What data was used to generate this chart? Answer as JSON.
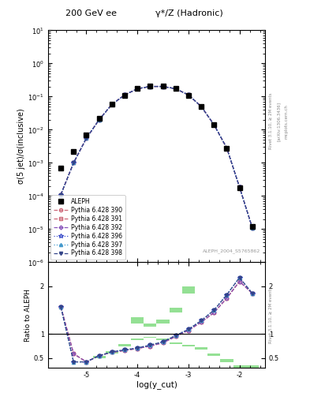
{
  "title_left": "200 GeV ee",
  "title_right": "γ*/Z (Hadronic)",
  "rivet_label": "Rivet 3.1.10, ≥ 2M events",
  "arxiv_label": "[arXiv:1306.3436]",
  "mcplots_label": "mcplots.cern.ch",
  "analysis_label": "ALEPH_2004_S5765862",
  "ylabel_main": "σ(5 jet)/σ(inclusive)",
  "ylabel_ratio": "Ratio to ALEPH",
  "xlabel": "log(y_cut)",
  "x": [
    -5.5,
    -5.25,
    -5.0,
    -4.75,
    -4.5,
    -4.25,
    -4.0,
    -3.75,
    -3.5,
    -3.25,
    -3.0,
    -2.75,
    -2.5,
    -2.25,
    -2.0,
    -1.75
  ],
  "aleph": [
    0.0007,
    0.0022,
    0.007,
    0.022,
    0.06,
    0.11,
    0.175,
    0.205,
    0.205,
    0.175,
    0.11,
    0.05,
    0.014,
    0.0028,
    0.00018,
    1.2e-05
  ],
  "py390": [
    0.00011,
    0.001,
    0.0055,
    0.02,
    0.058,
    0.112,
    0.172,
    0.202,
    0.202,
    0.172,
    0.112,
    0.05,
    0.0142,
    0.0028,
    0.000185,
    1.1e-05
  ],
  "py391": [
    0.00011,
    0.001,
    0.0055,
    0.02,
    0.058,
    0.112,
    0.172,
    0.202,
    0.202,
    0.172,
    0.112,
    0.05,
    0.0142,
    0.0028,
    0.000185,
    1.1e-05
  ],
  "py392": [
    0.00011,
    0.001,
    0.0055,
    0.02,
    0.058,
    0.112,
    0.172,
    0.202,
    0.202,
    0.172,
    0.112,
    0.05,
    0.0142,
    0.0028,
    0.000185,
    1.1e-05
  ],
  "py396": [
    0.00011,
    0.001,
    0.0055,
    0.02,
    0.058,
    0.112,
    0.172,
    0.202,
    0.202,
    0.172,
    0.112,
    0.05,
    0.0142,
    0.0028,
    0.000185,
    1.1e-05
  ],
  "py397": [
    0.00011,
    0.001,
    0.0055,
    0.02,
    0.058,
    0.112,
    0.172,
    0.202,
    0.202,
    0.172,
    0.112,
    0.05,
    0.0142,
    0.0028,
    0.000185,
    1.1e-05
  ],
  "py398": [
    0.00011,
    0.001,
    0.0055,
    0.02,
    0.058,
    0.112,
    0.172,
    0.202,
    0.202,
    0.172,
    0.112,
    0.05,
    0.0142,
    0.0028,
    0.000185,
    1.1e-05
  ],
  "ratio390": [
    1.57,
    0.59,
    0.42,
    0.55,
    0.62,
    0.66,
    0.7,
    0.75,
    0.82,
    0.95,
    1.08,
    1.25,
    1.45,
    1.75,
    2.1,
    1.85
  ],
  "ratio391": [
    1.57,
    0.59,
    0.42,
    0.55,
    0.62,
    0.66,
    0.7,
    0.75,
    0.82,
    0.95,
    1.08,
    1.25,
    1.45,
    1.75,
    2.1,
    1.85
  ],
  "ratio392": [
    1.57,
    0.59,
    0.42,
    0.55,
    0.62,
    0.66,
    0.7,
    0.75,
    0.82,
    0.95,
    1.08,
    1.25,
    1.45,
    1.75,
    2.1,
    1.85
  ],
  "ratio396": [
    1.57,
    0.42,
    0.42,
    0.55,
    0.63,
    0.67,
    0.71,
    0.77,
    0.84,
    0.97,
    1.1,
    1.28,
    1.5,
    1.82,
    2.18,
    1.85
  ],
  "ratio397": [
    1.57,
    0.42,
    0.42,
    0.55,
    0.63,
    0.67,
    0.71,
    0.77,
    0.84,
    0.97,
    1.1,
    1.28,
    1.5,
    1.82,
    2.18,
    1.85
  ],
  "ratio398": [
    1.57,
    0.42,
    0.42,
    0.55,
    0.63,
    0.67,
    0.71,
    0.77,
    0.84,
    0.97,
    1.1,
    1.28,
    1.5,
    1.82,
    2.18,
    1.85
  ],
  "band_x_edges": [
    -5.625,
    -5.375,
    -5.125,
    -4.875,
    -4.625,
    -4.375,
    -4.125,
    -3.875,
    -3.625,
    -3.375,
    -3.125,
    -2.875,
    -2.625,
    -2.375,
    -2.125,
    -1.875,
    -1.625
  ],
  "green_lo": [
    0.3,
    0.3,
    0.3,
    0.5,
    0.6,
    0.75,
    0.88,
    0.92,
    0.88,
    0.8,
    0.75,
    0.68,
    0.55,
    0.42,
    0.3,
    0.3
  ],
  "green_hi": [
    2.5,
    2.5,
    2.5,
    2.5,
    2.5,
    2.5,
    1.35,
    1.22,
    1.3,
    1.55,
    2.0,
    2.5,
    2.5,
    2.5,
    2.5,
    2.5
  ],
  "yellow_lo": [
    0.3,
    0.3,
    0.3,
    0.55,
    0.65,
    0.8,
    0.9,
    0.94,
    0.9,
    0.83,
    0.78,
    0.72,
    0.6,
    0.48,
    0.35,
    0.35
  ],
  "yellow_hi": [
    2.5,
    2.5,
    2.5,
    2.5,
    2.5,
    2.5,
    1.22,
    1.15,
    1.22,
    1.45,
    1.85,
    2.5,
    2.5,
    2.5,
    2.5,
    2.5
  ],
  "xlim": [
    -5.75,
    -1.5
  ],
  "ylim_main": [
    1e-06,
    10
  ],
  "ylim_ratio": [
    0.3,
    2.5
  ],
  "yticks_ratio": [
    0.5,
    1.0,
    2.0
  ],
  "col390": "#cc6677",
  "col391": "#cc6677",
  "col392": "#8855bb",
  "col396": "#4455cc",
  "col397": "#4499cc",
  "col398": "#334488"
}
